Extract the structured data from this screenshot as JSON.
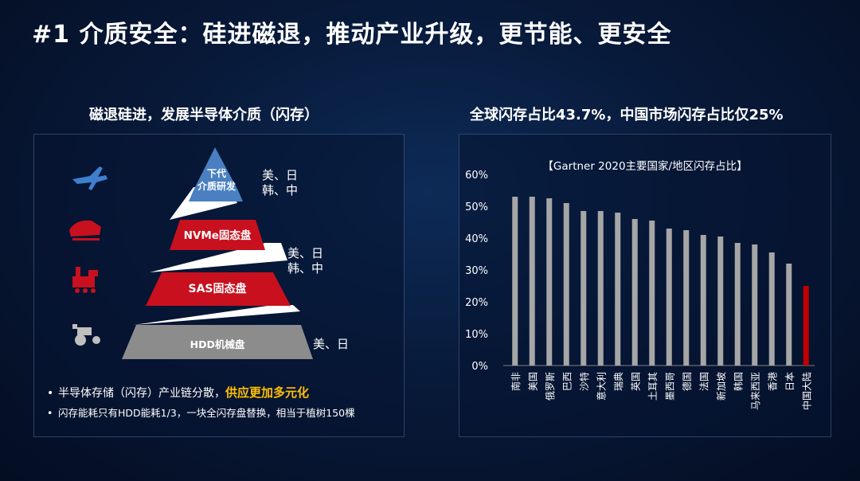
{
  "slide": {
    "title": "#1 介质安全：硅进磁退，推动产业升级，更节能、更安全"
  },
  "left_panel": {
    "heading": "磁退硅进，发展半导体介质（闪存）",
    "pyramid_levels": [
      {
        "label_line1": "下代",
        "label_line2": "介质研发",
        "countries_line1": "美、日",
        "countries_line2": "韩、中",
        "color": "#4a7fc1"
      },
      {
        "label_line1": "NVMe固态盘",
        "label_line2": "",
        "countries_line1": "美、日",
        "countries_line2": "韩、中",
        "color": "#c8101e"
      },
      {
        "label_line1": "SAS固态盘",
        "label_line2": "",
        "countries_line1": "",
        "countries_line2": "",
        "color": "#c8101e"
      },
      {
        "label_line1": "HDD机械盘",
        "label_line2": "",
        "countries_line1": "美、日",
        "countries_line2": "",
        "color": "#8c8c8c"
      }
    ],
    "icons": [
      "plane-icon",
      "bullet-train-icon",
      "steam-train-icon",
      "tractor-icon"
    ],
    "bullets": [
      {
        "text": "半导体存储（闪存）产业链分散，",
        "highlight": "供应更加多元化"
      },
      {
        "text": "闪存能耗只有HDD能耗1/3，一块全闪存盘替换，相当于植树150棵",
        "highlight": ""
      }
    ]
  },
  "right_panel": {
    "heading": "全球闪存占比43.7%，中国市场闪存占比仅25%"
  },
  "chart_data": {
    "type": "bar",
    "title": "【Gartner 2020主要国家/地区闪存占比】",
    "xlabel": "",
    "ylabel": "",
    "ylim": [
      0,
      60
    ],
    "yticks": [
      "0%",
      "10%",
      "20%",
      "30%",
      "40%",
      "50%",
      "60%"
    ],
    "categories": [
      "南非",
      "美国",
      "俄罗斯",
      "巴西",
      "沙特",
      "意大利",
      "瑞典",
      "英国",
      "土耳其",
      "墨西哥",
      "德国",
      "法国",
      "新加坡",
      "韩国",
      "马来西亚",
      "香港",
      "日本",
      "中国大陆"
    ],
    "values": [
      53,
      53,
      52.5,
      51,
      48.5,
      48.5,
      48,
      46,
      45.5,
      43,
      42.5,
      41,
      40.5,
      38.5,
      38,
      35.5,
      32,
      25
    ],
    "colors": {
      "default": "#a6a6a6",
      "highlight": "#c00000"
    },
    "highlight_index": 17,
    "grid": false
  }
}
